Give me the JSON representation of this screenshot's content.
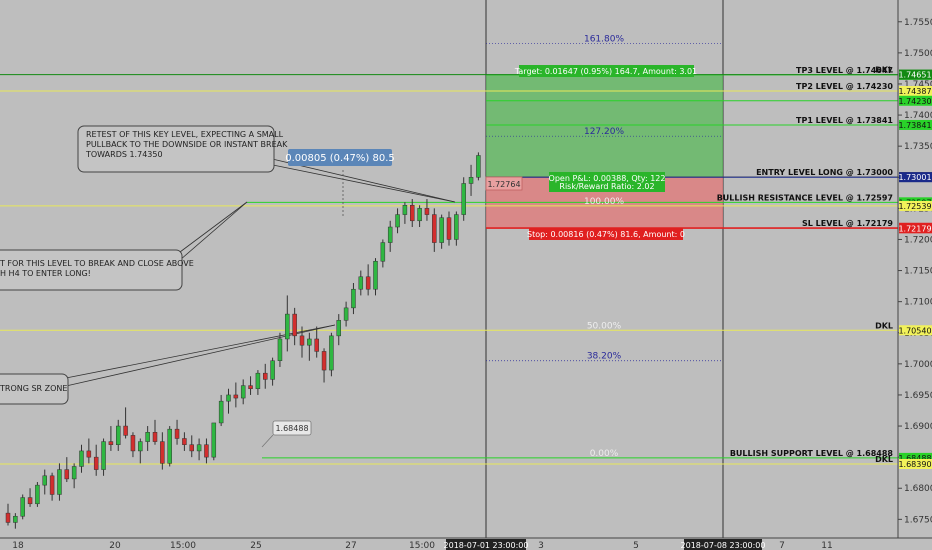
{
  "colors": {
    "bg": "#bebebe",
    "up": "#2fb742",
    "down": "#d22e2e",
    "wick": "#333333",
    "yellow_line": "#e8e85a",
    "green_line": "#29d229",
    "red_line": "#e02020",
    "blue_line": "#1a2a8a",
    "target_zone": "#5ab85a",
    "stop_zone": "#e07a7a",
    "fib_text": "#2a2a9a"
  },
  "y_axis": {
    "ticks": [
      "1.75500",
      "1.75000",
      "1.74500",
      "1.74000",
      "1.73500",
      "1.73000",
      "1.72500",
      "1.72000",
      "1.71500",
      "1.71000",
      "1.70500",
      "1.70000",
      "1.69500",
      "1.69000",
      "1.68500",
      "1.68000",
      "1.67500"
    ],
    "min": 1.672,
    "max": 1.7585
  },
  "x_axis": {
    "ticks": [
      "18",
      "20",
      "15:00",
      "25",
      "27",
      "15:00",
      "3",
      "5",
      "7",
      "11"
    ],
    "highlight_1": "2018-07-01 23:00:00",
    "highlight_2": "2018-07-08 23:00:00"
  },
  "levels": [
    {
      "label": "TP3 LEVEL @ 1.74647",
      "price": 1.74647,
      "tag": "1.74647",
      "kind": "green"
    },
    {
      "label": "DKL",
      "price": 1.74651,
      "tag": "1.74651",
      "kind": "green_dark"
    },
    {
      "label": "TP2 LEVEL @ 1.74230",
      "price": 1.74387,
      "tag": "1.74387",
      "kind": "yellow"
    },
    {
      "label": "",
      "price": 1.7423,
      "tag": "1.74230",
      "kind": "green"
    },
    {
      "label": "TP1 LEVEL @ 1.73841",
      "price": 1.73841,
      "tag": "1.73841",
      "kind": "green"
    },
    {
      "label": "ENTRY LEVEL LONG @ 1.73000",
      "price": 1.73004,
      "tag": "1.73004",
      "kind": "gray"
    },
    {
      "label": "",
      "price": 1.73001,
      "tag": "1.73001",
      "kind": "blue"
    },
    {
      "label": "BULLISH RESISTANCE LEVEL @ 1.72597",
      "price": 1.72597,
      "tag": "1.72597",
      "kind": "green"
    },
    {
      "label": "",
      "price": 1.72539,
      "tag": "1.72539",
      "kind": "yellow"
    },
    {
      "label": "SL LEVEL @ 1.72179",
      "price": 1.72188,
      "tag": "1.72188",
      "kind": "red"
    },
    {
      "label": "",
      "price": 1.72179,
      "tag": "1.72179",
      "kind": "red"
    },
    {
      "label": "DKL",
      "price": 1.7054,
      "tag": "1.70540",
      "kind": "yellow"
    },
    {
      "label": "BULLISH SUPPORT LEVEL @ 1.68488",
      "price": 1.68488,
      "tag": "1.68488",
      "kind": "green"
    },
    {
      "label": "DKL",
      "price": 1.6839,
      "tag": "1.68390",
      "kind": "yellow"
    }
  ],
  "fib_labels": [
    {
      "text": "161.80%",
      "price": 1.7515
    },
    {
      "text": "127.20%",
      "price": 1.7366
    },
    {
      "text": "100.00%",
      "price": 1.7254
    },
    {
      "text": "50.00%",
      "price": 1.7054
    },
    {
      "text": "38.20%",
      "price": 1.7005
    },
    {
      "text": "0.00%",
      "price": 1.6849
    }
  ],
  "position": {
    "target_label": "Target: 0.01647 (0.95%) 164.7, Amount: 3.01",
    "pnl_line1": "Open P&L: 0.00388, Qty: 122",
    "pnl_line2": "Risk/Reward Ratio: 2.02",
    "stop_label": "Stop: 0.00816 (0.47%) 81.6, Amount: 0",
    "price_tag": "1.72764",
    "measure_label": "0.00805 (0.47%) 80.5",
    "support_tag": "1.68488"
  },
  "notes": {
    "note1_lines": [
      "RETEST OF THIS KEY LEVEL, EXPECTING A SMALL",
      "PULLBACK TO THE DOWNSIDE OR INSTANT BREAK",
      "TOWARDS 1.74350"
    ],
    "note2_lines": [
      "T FOR THIS LEVEL TO BREAK AND CLOSE ABOVE",
      "H H4 TO ENTER LONG!"
    ],
    "note3_lines": [
      "TRONG SR ZONE"
    ]
  },
  "chart_data": {
    "type": "candlestick",
    "series": [
      {
        "name": "",
        "candles": [
          [
            1.676,
            1.6775,
            1.674,
            1.6745
          ],
          [
            1.6745,
            1.676,
            1.6735,
            1.6755
          ],
          [
            1.6755,
            1.679,
            1.675,
            1.6785
          ],
          [
            1.6785,
            1.68,
            1.677,
            1.6775
          ],
          [
            1.6775,
            1.681,
            1.677,
            1.6805
          ],
          [
            1.6805,
            1.683,
            1.679,
            1.682
          ],
          [
            1.682,
            1.6825,
            1.678,
            1.679
          ],
          [
            1.679,
            1.684,
            1.678,
            1.683
          ],
          [
            1.683,
            1.685,
            1.681,
            1.6815
          ],
          [
            1.6815,
            1.684,
            1.68,
            1.6835
          ],
          [
            1.6835,
            1.687,
            1.6825,
            1.686
          ],
          [
            1.686,
            1.688,
            1.684,
            1.685
          ],
          [
            1.685,
            1.687,
            1.682,
            1.683
          ],
          [
            1.683,
            1.688,
            1.682,
            1.6875
          ],
          [
            1.6875,
            1.69,
            1.686,
            1.687
          ],
          [
            1.687,
            1.691,
            1.686,
            1.69
          ],
          [
            1.69,
            1.693,
            1.688,
            1.6885
          ],
          [
            1.6885,
            1.689,
            1.685,
            1.686
          ],
          [
            1.686,
            1.688,
            1.684,
            1.6875
          ],
          [
            1.6875,
            1.69,
            1.686,
            1.689
          ],
          [
            1.689,
            1.691,
            1.687,
            1.6875
          ],
          [
            1.6875,
            1.689,
            1.683,
            1.684
          ],
          [
            1.684,
            1.69,
            1.6835,
            1.6895
          ],
          [
            1.6895,
            1.691,
            1.687,
            1.688
          ],
          [
            1.688,
            1.689,
            1.686,
            1.687
          ],
          [
            1.687,
            1.6885,
            1.685,
            1.686
          ],
          [
            1.686,
            1.688,
            1.6845,
            1.687
          ],
          [
            1.687,
            1.688,
            1.684,
            1.685
          ],
          [
            1.685,
            1.69,
            1.6845,
            1.6905
          ],
          [
            1.6905,
            1.695,
            1.69,
            1.694
          ],
          [
            1.694,
            1.696,
            1.692,
            1.695
          ],
          [
            1.695,
            1.697,
            1.693,
            1.6945
          ],
          [
            1.6945,
            1.6975,
            1.6935,
            1.6965
          ],
          [
            1.6965,
            1.698,
            1.695,
            1.696
          ],
          [
            1.696,
            1.699,
            1.695,
            1.6985
          ],
          [
            1.6985,
            1.7,
            1.696,
            1.6975
          ],
          [
            1.6975,
            1.701,
            1.6965,
            1.7005
          ],
          [
            1.7005,
            1.705,
            1.6995,
            1.704
          ],
          [
            1.704,
            1.711,
            1.702,
            1.708
          ],
          [
            1.708,
            1.709,
            1.703,
            1.7045
          ],
          [
            1.7045,
            1.706,
            1.701,
            1.703
          ],
          [
            1.703,
            1.705,
            1.7005,
            1.704
          ],
          [
            1.704,
            1.706,
            1.701,
            1.702
          ],
          [
            1.702,
            1.7025,
            1.697,
            1.699
          ],
          [
            1.699,
            1.705,
            1.698,
            1.7045
          ],
          [
            1.7045,
            1.708,
            1.703,
            1.707
          ],
          [
            1.707,
            1.71,
            1.706,
            1.709
          ],
          [
            1.709,
            1.713,
            1.708,
            1.712
          ],
          [
            1.712,
            1.715,
            1.711,
            1.714
          ],
          [
            1.714,
            1.716,
            1.711,
            1.712
          ],
          [
            1.712,
            1.717,
            1.711,
            1.7165
          ],
          [
            1.7165,
            1.72,
            1.7155,
            1.7195
          ],
          [
            1.7195,
            1.723,
            1.718,
            1.722
          ],
          [
            1.722,
            1.725,
            1.721,
            1.724
          ],
          [
            1.724,
            1.726,
            1.7225,
            1.7255
          ],
          [
            1.7255,
            1.7265,
            1.722,
            1.723
          ],
          [
            1.723,
            1.7255,
            1.722,
            1.725
          ],
          [
            1.725,
            1.7265,
            1.723,
            1.724
          ],
          [
            1.724,
            1.725,
            1.718,
            1.7195
          ],
          [
            1.7195,
            1.724,
            1.7185,
            1.7235
          ],
          [
            1.7235,
            1.7245,
            1.719,
            1.72
          ],
          [
            1.72,
            1.7245,
            1.719,
            1.724
          ],
          [
            1.724,
            1.73,
            1.723,
            1.729
          ],
          [
            1.729,
            1.732,
            1.727,
            1.73
          ],
          [
            1.73,
            1.734,
            1.7295,
            1.7335
          ]
        ]
      }
    ]
  }
}
